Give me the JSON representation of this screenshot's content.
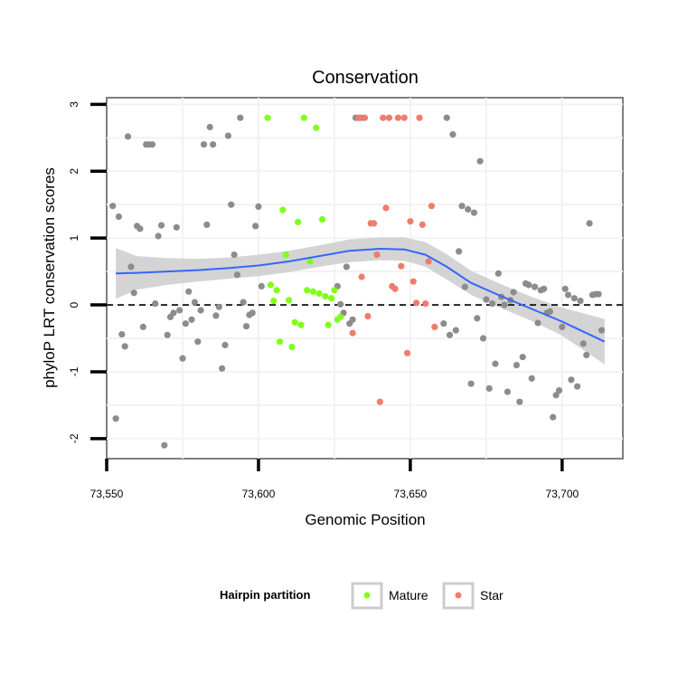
{
  "chart_data": {
    "type": "scatter",
    "title": "Conservation",
    "xlabel": "Genomic Position",
    "ylabel": "phyloP LRT conservation scores",
    "xlim": [
      73550,
      73720
    ],
    "ylim": [
      -2.3,
      3.1
    ],
    "x_ticks": [
      {
        "value": 73550,
        "label": "73,550"
      },
      {
        "value": 73600,
        "label": "73,600"
      },
      {
        "value": 73650,
        "label": "73,650"
      },
      {
        "value": 73700,
        "label": "73,700"
      }
    ],
    "y_ticks": [
      {
        "value": -2,
        "label": "-2"
      },
      {
        "value": -1,
        "label": "-1"
      },
      {
        "value": 0,
        "label": "0"
      },
      {
        "value": 1,
        "label": "1"
      },
      {
        "value": 2,
        "label": "2"
      },
      {
        "value": 3,
        "label": "3"
      }
    ],
    "reference_line": {
      "y": 0,
      "style": "dashed"
    },
    "legend": {
      "title": "Hairpin partition",
      "placement": "bottom",
      "entries": [
        {
          "name": "Mature",
          "color": "#7fff1a"
        },
        {
          "name": "Star",
          "color": "#f07c6c"
        }
      ]
    },
    "colors": {
      "other": "#8c8c8c",
      "smooth": "#3366ff",
      "ribbon": "#cccccc"
    },
    "series": [
      {
        "name": "other",
        "points": [
          [
            73552,
            1.48
          ],
          [
            73553,
            -1.7
          ],
          [
            73554,
            1.32
          ],
          [
            73555,
            -0.44
          ],
          [
            73556,
            -0.62
          ],
          [
            73557,
            2.52
          ],
          [
            73558,
            0.57
          ],
          [
            73559,
            0.18
          ],
          [
            73560,
            1.18
          ],
          [
            73561,
            1.14
          ],
          [
            73562,
            -0.33
          ],
          [
            73563,
            2.4
          ],
          [
            73564,
            2.4
          ],
          [
            73565,
            2.4
          ],
          [
            73566,
            0.02
          ],
          [
            73567,
            1.03
          ],
          [
            73568,
            1.19
          ],
          [
            73569,
            -2.1
          ],
          [
            73570,
            -0.45
          ],
          [
            73571,
            -0.18
          ],
          [
            73572,
            -0.12
          ],
          [
            73573,
            1.16
          ],
          [
            73574,
            -0.08
          ],
          [
            73575,
            -0.8
          ],
          [
            73576,
            -0.28
          ],
          [
            73577,
            0.2
          ],
          [
            73578,
            -0.22
          ],
          [
            73579,
            0.04
          ],
          [
            73580,
            -0.55
          ],
          [
            73581,
            -0.08
          ],
          [
            73582,
            2.4
          ],
          [
            73583,
            1.2
          ],
          [
            73584,
            2.66
          ],
          [
            73585,
            2.4
          ],
          [
            73586,
            -0.16
          ],
          [
            73587,
            -0.03
          ],
          [
            73588,
            -0.95
          ],
          [
            73589,
            -0.6
          ],
          [
            73590,
            2.53
          ],
          [
            73591,
            1.5
          ],
          [
            73592,
            0.75
          ],
          [
            73593,
            0.45
          ],
          [
            73594,
            2.8
          ],
          [
            73595,
            0.04
          ],
          [
            73596,
            -0.32
          ],
          [
            73597,
            -0.15
          ],
          [
            73598,
            -0.12
          ],
          [
            73599,
            1.18
          ],
          [
            73600,
            1.47
          ],
          [
            73601,
            0.28
          ],
          [
            73626,
            0.28
          ],
          [
            73627,
            0.01
          ],
          [
            73628,
            -0.12
          ],
          [
            73629,
            0.57
          ],
          [
            73630,
            -0.28
          ],
          [
            73631,
            -0.22
          ],
          [
            73632,
            2.8
          ],
          [
            73633,
            2.8
          ],
          [
            73634,
            2.8
          ],
          [
            73661,
            -0.28
          ],
          [
            73662,
            2.8
          ],
          [
            73663,
            -0.45
          ],
          [
            73664,
            2.55
          ],
          [
            73665,
            -0.38
          ],
          [
            73666,
            0.8
          ],
          [
            73667,
            1.48
          ],
          [
            73668,
            0.27
          ],
          [
            73669,
            1.43
          ],
          [
            73670,
            -1.18
          ],
          [
            73671,
            1.38
          ],
          [
            73672,
            -0.2
          ],
          [
            73673,
            2.15
          ],
          [
            73674,
            -0.5
          ],
          [
            73675,
            0.08
          ],
          [
            73676,
            -1.25
          ],
          [
            73677,
            0.02
          ],
          [
            73678,
            -0.88
          ],
          [
            73679,
            0.47
          ],
          [
            73680,
            0.12
          ],
          [
            73681,
            0.0
          ],
          [
            73682,
            -1.3
          ],
          [
            73683,
            0.07
          ],
          [
            73684,
            0.19
          ],
          [
            73685,
            -0.9
          ],
          [
            73686,
            -1.45
          ],
          [
            73687,
            -0.78
          ],
          [
            73688,
            0.32
          ],
          [
            73689,
            0.3
          ],
          [
            73690,
            -1.1
          ],
          [
            73691,
            0.27
          ],
          [
            73692,
            -0.27
          ],
          [
            73693,
            0.22
          ],
          [
            73694,
            0.24
          ],
          [
            73695,
            -0.12
          ],
          [
            73696,
            -0.1
          ],
          [
            73697,
            -1.68
          ],
          [
            73698,
            -1.35
          ],
          [
            73699,
            -1.28
          ],
          [
            73700,
            -0.33
          ],
          [
            73701,
            0.24
          ],
          [
            73702,
            0.15
          ],
          [
            73703,
            -1.12
          ],
          [
            73704,
            0.1
          ],
          [
            73705,
            -1.22
          ],
          [
            73706,
            0.06
          ],
          [
            73707,
            -0.58
          ],
          [
            73708,
            -0.75
          ],
          [
            73709,
            1.22
          ],
          [
            73710,
            0.15
          ],
          [
            73711,
            0.16
          ],
          [
            73712,
            0.16
          ],
          [
            73713,
            -0.38
          ]
        ]
      },
      {
        "name": "Mature",
        "points": [
          [
            73603,
            2.8
          ],
          [
            73604,
            0.3
          ],
          [
            73605,
            0.06
          ],
          [
            73606,
            0.22
          ],
          [
            73607,
            -0.55
          ],
          [
            73608,
            1.42
          ],
          [
            73609,
            0.75
          ],
          [
            73610,
            0.07
          ],
          [
            73611,
            -0.63
          ],
          [
            73612,
            -0.26
          ],
          [
            73613,
            1.24
          ],
          [
            73614,
            -0.3
          ],
          [
            73615,
            2.8
          ],
          [
            73616,
            0.22
          ],
          [
            73617,
            0.65
          ],
          [
            73618,
            0.2
          ],
          [
            73619,
            2.65
          ],
          [
            73620,
            0.17
          ],
          [
            73621,
            1.28
          ],
          [
            73622,
            0.13
          ],
          [
            73623,
            -0.3
          ],
          [
            73624,
            0.1
          ],
          [
            73625,
            0.22
          ],
          [
            73626,
            -0.22
          ],
          [
            73627,
            -0.18
          ]
        ]
      },
      {
        "name": "Star",
        "points": [
          [
            73631,
            -0.42
          ],
          [
            73633,
            2.8
          ],
          [
            73634,
            0.42
          ],
          [
            73635,
            2.8
          ],
          [
            73636,
            -0.17
          ],
          [
            73637,
            1.22
          ],
          [
            73638,
            1.22
          ],
          [
            73639,
            0.75
          ],
          [
            73640,
            -1.45
          ],
          [
            73641,
            2.8
          ],
          [
            73642,
            1.45
          ],
          [
            73643,
            2.8
          ],
          [
            73644,
            0.28
          ],
          [
            73645,
            0.24
          ],
          [
            73646,
            2.8
          ],
          [
            73647,
            0.58
          ],
          [
            73648,
            2.8
          ],
          [
            73649,
            -0.72
          ],
          [
            73650,
            1.25
          ],
          [
            73651,
            0.35
          ],
          [
            73652,
            0.03
          ],
          [
            73653,
            2.8
          ],
          [
            73654,
            1.2
          ],
          [
            73655,
            0.02
          ],
          [
            73656,
            0.65
          ],
          [
            73657,
            1.48
          ],
          [
            73658,
            -0.33
          ]
        ]
      }
    ],
    "smooth": [
      {
        "x": 73553,
        "y": 0.47,
        "lo": 0.09,
        "hi": 0.85
      },
      {
        "x": 73560,
        "y": 0.48,
        "lo": 0.23,
        "hi": 0.73
      },
      {
        "x": 73570,
        "y": 0.5,
        "lo": 0.3,
        "hi": 0.7
      },
      {
        "x": 73580,
        "y": 0.52,
        "lo": 0.35,
        "hi": 0.69
      },
      {
        "x": 73590,
        "y": 0.55,
        "lo": 0.39,
        "hi": 0.71
      },
      {
        "x": 73600,
        "y": 0.59,
        "lo": 0.43,
        "hi": 0.75
      },
      {
        "x": 73610,
        "y": 0.65,
        "lo": 0.49,
        "hi": 0.81
      },
      {
        "x": 73620,
        "y": 0.73,
        "lo": 0.57,
        "hi": 0.89
      },
      {
        "x": 73630,
        "y": 0.81,
        "lo": 0.64,
        "hi": 0.98
      },
      {
        "x": 73640,
        "y": 0.84,
        "lo": 0.67,
        "hi": 1.01
      },
      {
        "x": 73648,
        "y": 0.83,
        "lo": 0.66,
        "hi": 1.01
      },
      {
        "x": 73655,
        "y": 0.75,
        "lo": 0.57,
        "hi": 0.94
      },
      {
        "x": 73662,
        "y": 0.57,
        "lo": 0.38,
        "hi": 0.76
      },
      {
        "x": 73670,
        "y": 0.33,
        "lo": 0.15,
        "hi": 0.51
      },
      {
        "x": 73680,
        "y": 0.13,
        "lo": -0.05,
        "hi": 0.31
      },
      {
        "x": 73690,
        "y": -0.06,
        "lo": -0.24,
        "hi": 0.12
      },
      {
        "x": 73700,
        "y": -0.25,
        "lo": -0.46,
        "hi": -0.04
      },
      {
        "x": 73714,
        "y": -0.55,
        "lo": -0.89,
        "hi": -0.21
      }
    ]
  }
}
